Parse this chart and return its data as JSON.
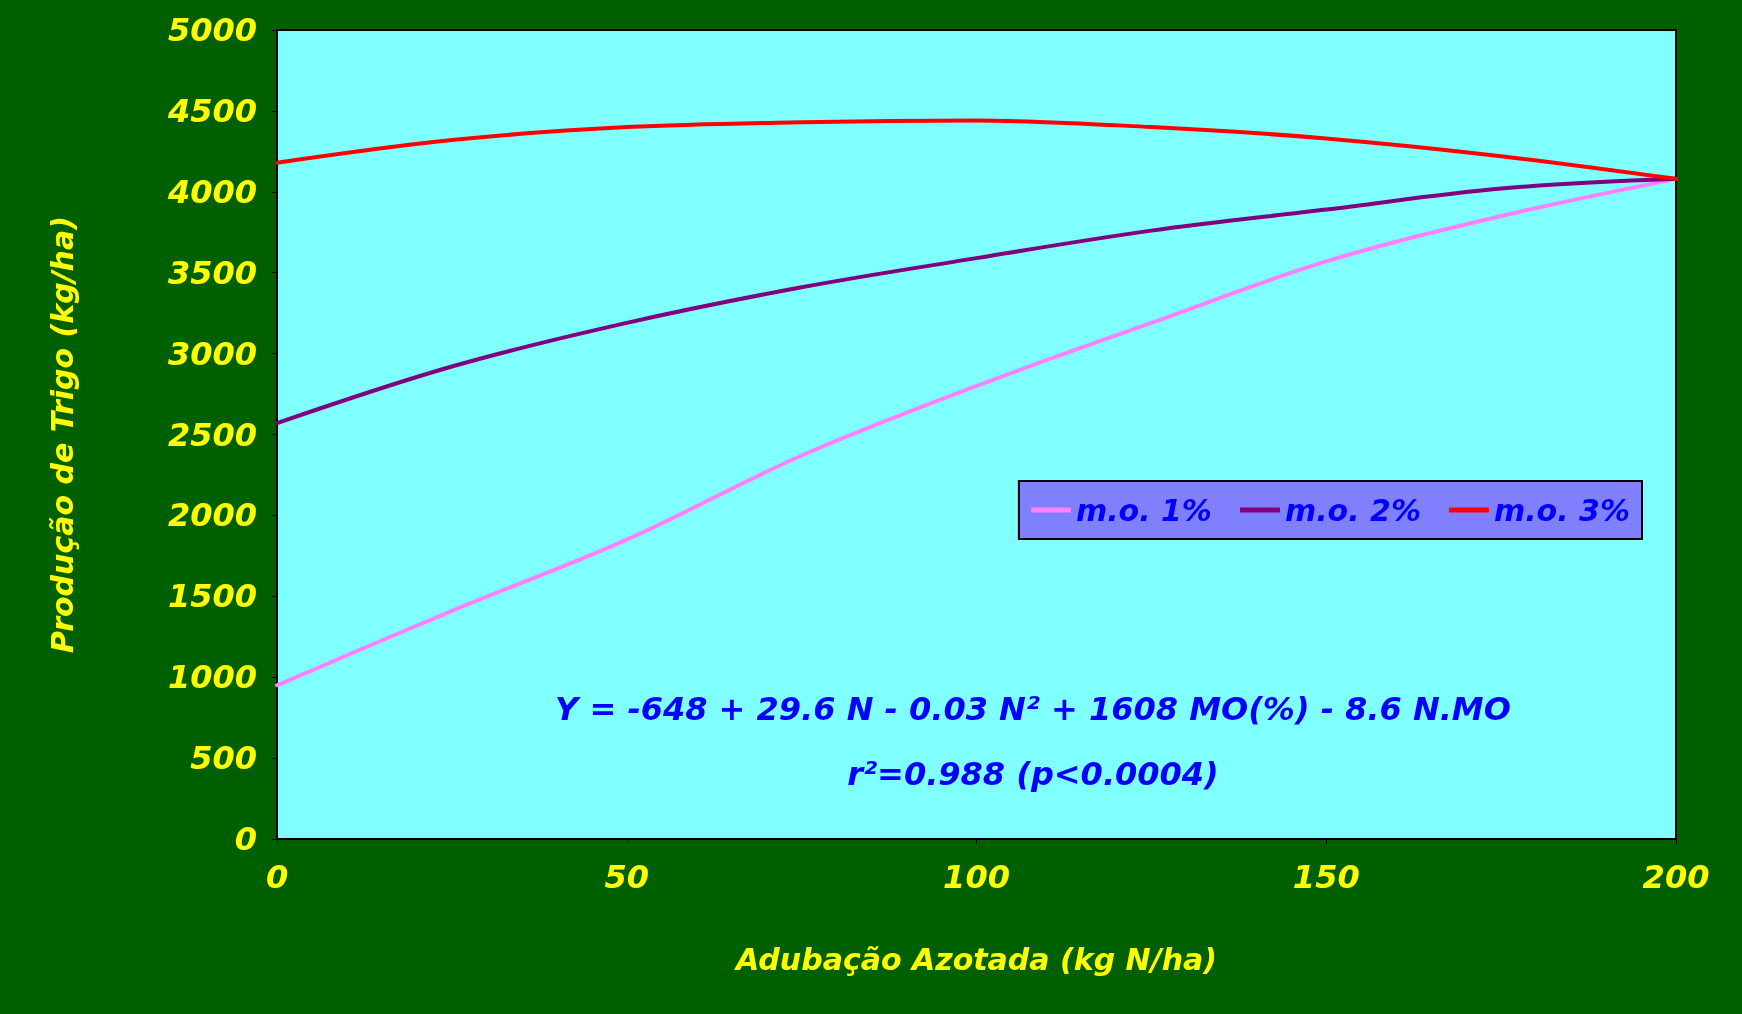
{
  "chart_data": {
    "type": "line",
    "xlabel": "Adubação Azotada (kg N/ha)",
    "ylabel": "Produção de Trigo (kg/ha)",
    "x": [
      0,
      25,
      50,
      75,
      100,
      125,
      150,
      175,
      200
    ],
    "series": [
      {
        "name": "m.o. 1%",
        "color": "#ff80ff",
        "values": [
          950,
          1410,
          1850,
          2370,
          2800,
          3190,
          3570,
          3850,
          4080
        ]
      },
      {
        "name": "m.o. 2%",
        "color": "#800080",
        "values": [
          2570,
          2920,
          3190,
          3410,
          3590,
          3760,
          3890,
          4020,
          4080
        ]
      },
      {
        "name": "m.o. 3%",
        "color": "#ff0000",
        "values": [
          4180,
          4320,
          4400,
          4430,
          4440,
          4400,
          4330,
          4220,
          4080
        ]
      }
    ],
    "xlim": [
      0,
      200
    ],
    "xticks": [
      0,
      50,
      100,
      150,
      200
    ],
    "ylim": [
      0,
      5000
    ],
    "yticks": [
      0,
      500,
      1000,
      1500,
      2000,
      2500,
      3000,
      3500,
      4000,
      4500,
      5000
    ],
    "grid": false,
    "legend": "right",
    "marker": "none",
    "line_style": "solid",
    "annotations": [
      "Y = -648 + 29.6 N - 0.03 N² + 1608 MO(%) - 8.6 N.MO",
      "r²=0.988 (p<0.0004)"
    ]
  }
}
